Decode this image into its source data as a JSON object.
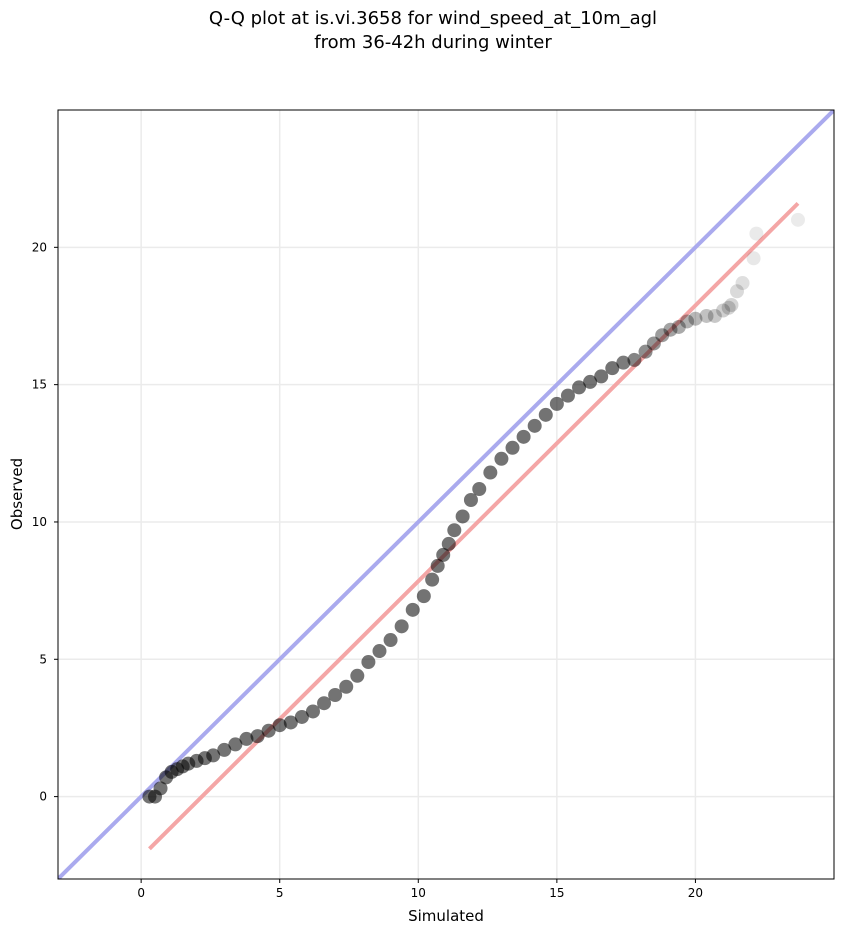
{
  "chart_data": {
    "type": "scatter",
    "title_line1": "Q-Q plot at is.vi.3658 for wind_speed_at_10m_agl",
    "title_line2": "from 36-42h during winter",
    "xlabel": "Simulated",
    "ylabel": "Observed",
    "xlim": [
      -3,
      25
    ],
    "ylim": [
      -3,
      25
    ],
    "xticks": [
      0,
      5,
      10,
      15,
      20
    ],
    "yticks": [
      0,
      5,
      10,
      15,
      20
    ],
    "xtick_labels": [
      "0",
      "5",
      "10",
      "15",
      "20"
    ],
    "ytick_labels": [
      "0",
      "5",
      "10",
      "15",
      "20"
    ],
    "grid": true,
    "identity_line": {
      "from": [
        -3,
        -3
      ],
      "to": [
        25,
        25
      ],
      "color": "#aaaaee"
    },
    "fit_line": {
      "from": [
        0.3,
        -1.9
      ],
      "to": [
        23.7,
        21.6
      ],
      "color": "#f4a6a6"
    },
    "point_color": "#000000",
    "points_x": [
      0.3,
      0.5,
      0.7,
      0.9,
      1.1,
      1.3,
      1.5,
      1.7,
      2.0,
      2.3,
      2.6,
      3.0,
      3.4,
      3.8,
      4.2,
      4.6,
      5.0,
      5.4,
      5.8,
      6.2,
      6.6,
      7.0,
      7.4,
      7.8,
      8.2,
      8.6,
      9.0,
      9.4,
      9.8,
      10.2,
      10.5,
      10.7,
      10.9,
      11.1,
      11.3,
      11.6,
      11.9,
      12.2,
      12.6,
      13.0,
      13.4,
      13.8,
      14.2,
      14.6,
      15.0,
      15.4,
      15.8,
      16.2,
      16.6,
      17.0,
      17.4,
      17.8,
      18.2,
      18.5,
      18.8,
      19.1,
      19.4,
      19.7,
      20.0,
      20.4,
      20.7,
      21.0,
      21.2,
      21.3,
      21.5,
      21.7,
      22.1,
      22.2,
      23.7
    ],
    "points_y": [
      0.0,
      0.0,
      0.3,
      0.7,
      0.9,
      1.0,
      1.1,
      1.2,
      1.3,
      1.4,
      1.5,
      1.7,
      1.9,
      2.1,
      2.2,
      2.4,
      2.6,
      2.7,
      2.9,
      3.1,
      3.4,
      3.7,
      4.0,
      4.4,
      4.9,
      5.3,
      5.7,
      6.2,
      6.8,
      7.3,
      7.9,
      8.4,
      8.8,
      9.2,
      9.7,
      10.2,
      10.8,
      11.2,
      11.8,
      12.3,
      12.7,
      13.1,
      13.5,
      13.9,
      14.3,
      14.6,
      14.9,
      15.1,
      15.3,
      15.6,
      15.8,
      15.9,
      16.2,
      16.5,
      16.8,
      17.0,
      17.1,
      17.3,
      17.4,
      17.5,
      17.5,
      17.7,
      17.8,
      17.9,
      18.4,
      18.7,
      19.6,
      20.5,
      21.0
    ]
  }
}
